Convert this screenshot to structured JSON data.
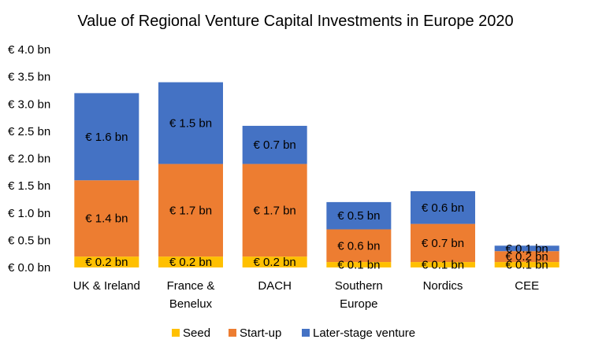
{
  "chart_data": {
    "type": "bar",
    "stacked": true,
    "title": "Value of Regional Venture Capital Investments in Europe 2020",
    "xlabel": "",
    "ylabel": "",
    "ylim": [
      0,
      4.0
    ],
    "yticks": [
      0,
      0.5,
      1.0,
      1.5,
      2.0,
      2.5,
      3.0,
      3.5,
      4.0
    ],
    "ytick_labels": [
      "€ 0.0 bn",
      "€ 0.5 bn",
      "€ 1.0 bn",
      "€ 1.5 bn",
      "€ 2.0 bn",
      "€ 2.5 bn",
      "€ 3.0 bn",
      "€ 3.5 bn",
      "€ 4.0 bn"
    ],
    "grid": false,
    "legend_position": "bottom",
    "categories": [
      [
        "UK & Ireland"
      ],
      [
        "France &",
        "Benelux"
      ],
      [
        "DACH"
      ],
      [
        "Southern",
        "Europe"
      ],
      [
        "Nordics"
      ],
      [
        "CEE"
      ]
    ],
    "series": [
      {
        "name": "Seed",
        "color": "#ffc000",
        "values": [
          0.2,
          0.2,
          0.2,
          0.1,
          0.1,
          0.1
        ],
        "labels": [
          "€ 0.2 bn",
          "€ 0.2 bn",
          "€ 0.2 bn",
          "€ 0.1 bn",
          "€ 0.1 bn",
          "€ 0.1 bn"
        ]
      },
      {
        "name": "Start-up",
        "color": "#ed7d31",
        "values": [
          1.4,
          1.7,
          1.7,
          0.6,
          0.7,
          0.2
        ],
        "labels": [
          "€ 1.4 bn",
          "€ 1.7 bn",
          "€ 1.7 bn",
          "€ 0.6 bn",
          "€ 0.7 bn",
          "€ 0.2 bn"
        ]
      },
      {
        "name": "Later-stage venture",
        "color": "#4472c4",
        "values": [
          1.6,
          1.5,
          0.7,
          0.5,
          0.6,
          0.1
        ],
        "labels": [
          "€ 1.6 bn",
          "€ 1.5 bn",
          "€ 0.7 bn",
          "€ 0.5 bn",
          "€ 0.6 bn",
          "€ 0.1 bn"
        ]
      }
    ]
  }
}
